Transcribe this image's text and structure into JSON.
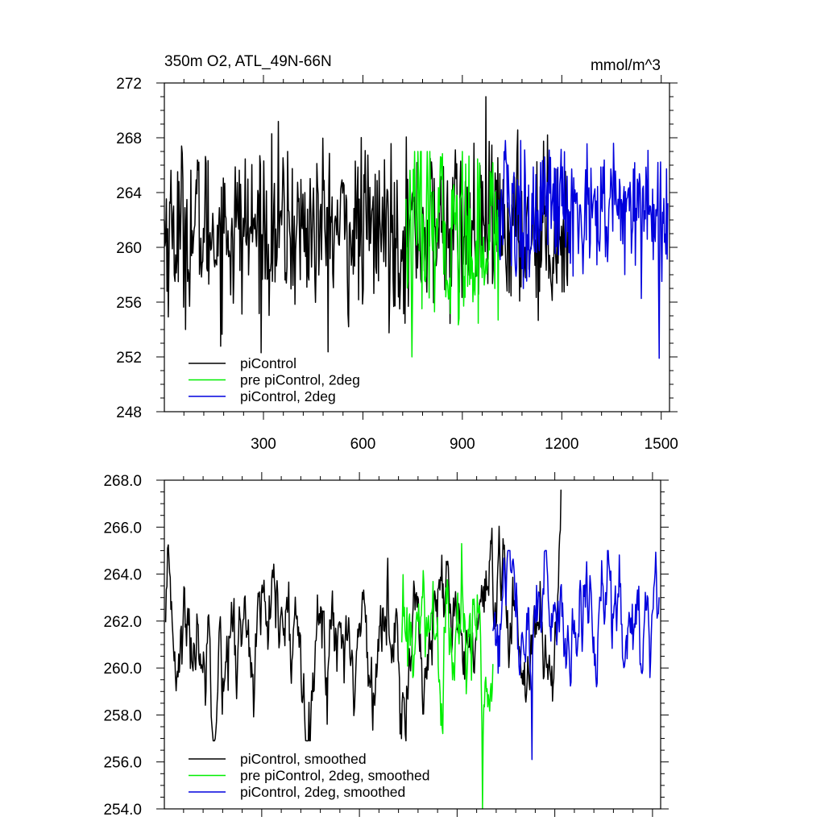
{
  "figure": {
    "title_left": "350m O2, ATL_49N-66N",
    "title_right": "mmol/m^3"
  },
  "colors": {
    "series_1": "#000000",
    "series_2": "#00ee00",
    "series_3": "#0000dd"
  },
  "chart_data": [
    {
      "type": "line",
      "title": "350m O2, ATL_49N-66N",
      "unit": "mmol/m^3",
      "xlim": [
        1,
        1525
      ],
      "ylim": [
        248,
        272
      ],
      "xticks": [
        300,
        600,
        900,
        1200,
        1500
      ],
      "xtick_labels": [
        "300",
        "600",
        "900",
        "1200",
        "1500"
      ],
      "yticks": [
        248,
        252,
        256,
        260,
        264,
        268,
        272
      ],
      "ytick_labels": [
        "248",
        "252",
        "256",
        "260",
        "264",
        "268",
        "272"
      ],
      "grid": false,
      "legend_position": "bottom-left",
      "series": [
        {
          "name": "piControl",
          "color": "#000000",
          "x_start": 1,
          "x_end": 1220,
          "mean": 261.3,
          "sd": 3.0,
          "min": 252.3,
          "max": 271.0
        },
        {
          "name": "pre piControl, 2deg",
          "color": "#00ee00",
          "x_start": 730,
          "x_end": 1010,
          "mean": 261.0,
          "sd": 3.2,
          "min": 252.0,
          "max": 267.0
        },
        {
          "name": "piControl, 2deg",
          "color": "#0000dd",
          "x_start": 1010,
          "x_end": 1520,
          "mean": 262.5,
          "sd": 2.6,
          "min": 251.9,
          "max": 267.8
        }
      ]
    },
    {
      "type": "line",
      "xlim": [
        1,
        1525
      ],
      "ylim": [
        254.0,
        268.0
      ],
      "xticks": [
        300,
        600,
        900,
        1200,
        1500
      ],
      "yticks": [
        254.0,
        256.0,
        258.0,
        260.0,
        262.0,
        264.0,
        266.0,
        268.0
      ],
      "ytick_labels": [
        "254.0",
        "256.0",
        "258.0",
        "260.0",
        "262.0",
        "264.0",
        "266.0",
        "268.0"
      ],
      "grid": false,
      "legend_position": "bottom-left",
      "series": [
        {
          "name": "piControl, smoothed",
          "color": "#000000",
          "x_start": 5,
          "x_end": 1220,
          "mean": 261.3,
          "sd": 1.6,
          "min": 256.9,
          "max": 267.6
        },
        {
          "name": "pre piControl, 2deg, smoothed",
          "color": "#00ee00",
          "x_start": 730,
          "x_end": 1010,
          "mean": 260.8,
          "sd": 1.8,
          "min": 254.0,
          "max": 265.3
        },
        {
          "name": "piControl, 2deg, smoothed",
          "color": "#0000dd",
          "x_start": 1010,
          "x_end": 1520,
          "mean": 262.0,
          "sd": 1.6,
          "min": 256.1,
          "max": 265.0
        }
      ]
    }
  ]
}
